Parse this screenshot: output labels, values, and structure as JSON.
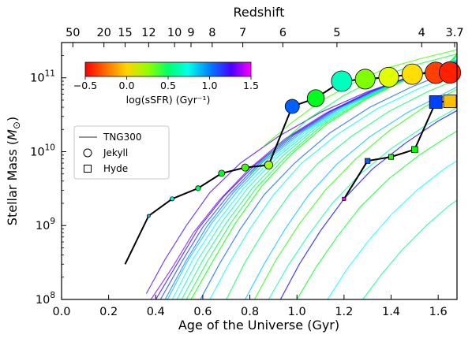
{
  "chart_data": {
    "type": "scatter",
    "xlabel": "Age of the Universe (Gyr)",
    "ylabel": "Stellar Mass (M⊙)",
    "top_axis_label": "Redshift",
    "xlim": [
      0.0,
      1.68
    ],
    "ylim": [
      100000000.0,
      300000000000.0
    ],
    "yscale": "log",
    "x_ticks": [
      "0.0",
      "0.2",
      "0.4",
      "0.6",
      "0.8",
      "1.0",
      "1.2",
      "1.4",
      "1.6"
    ],
    "y_ticks": [
      {
        "base": "10",
        "exp": "8",
        "value": 100000000.0
      },
      {
        "base": "10",
        "exp": "9",
        "value": 1000000000.0
      },
      {
        "base": "10",
        "exp": "10",
        "value": 10000000000.0
      },
      {
        "base": "10",
        "exp": "11",
        "value": 100000000000.0
      }
    ],
    "redshift_ticks": [
      {
        "label": "50",
        "age": 0.048
      },
      {
        "label": "20",
        "age": 0.18
      },
      {
        "label": "15",
        "age": 0.27
      },
      {
        "label": "12",
        "age": 0.37
      },
      {
        "label": "10",
        "age": 0.48
      },
      {
        "label": "9",
        "age": 0.55
      },
      {
        "label": "8",
        "age": 0.64
      },
      {
        "label": "7",
        "age": 0.77
      },
      {
        "label": "6",
        "age": 0.94
      },
      {
        "label": "5",
        "age": 1.17
      },
      {
        "label": "4",
        "age": 1.53
      },
      {
        "label": "3.7",
        "age": 1.67
      }
    ],
    "colorbar": {
      "label": "log(sSFR) (Gyr⁻¹)",
      "range": [
        -0.5,
        1.5
      ],
      "ticks": [
        "−0.5",
        "0.0",
        "0.5",
        "1.0",
        "1.5"
      ],
      "tick_values": [
        -0.5,
        0.0,
        0.5,
        1.0,
        1.5
      ],
      "colormap": "gist_rainbow_r"
    },
    "legend": {
      "placement": "center-left",
      "entries": [
        {
          "label": "TNG300",
          "marker": "line"
        },
        {
          "label": "Jekyll",
          "marker": "circle"
        },
        {
          "label": "Hyde",
          "marker": "square"
        }
      ]
    },
    "series": [
      {
        "name": "Jekyll",
        "marker": "circle",
        "x": [
          0.27,
          0.37,
          0.47,
          0.58,
          0.68,
          0.78,
          0.88,
          0.98,
          1.08,
          1.19,
          1.29,
          1.39,
          1.49,
          1.59,
          1.65
        ],
        "y": [
          300000000.0,
          1350000000.0,
          2300000000.0,
          3200000000.0,
          5100000000.0,
          6100000000.0,
          6600000000.0,
          41000000000.0,
          53000000000.0,
          90000000000.0,
          96000000000.0,
          102000000000.0,
          112000000000.0,
          117000000000.0,
          118000000000.0
        ],
        "log_ssfr": [
          null,
          0.8,
          0.65,
          0.45,
          0.35,
          0.2,
          0.05,
          0.95,
          0.35,
          0.6,
          0.1,
          -0.05,
          -0.15,
          -0.4,
          -0.45
        ],
        "size": [
          0,
          1,
          1.3,
          1.6,
          2.0,
          2.3,
          2.6,
          4.5,
          5.4,
          6.5,
          6.3,
          6.3,
          6.5,
          6.8,
          6.8
        ]
      },
      {
        "name": "Hyde",
        "marker": "square",
        "x": [
          1.2,
          1.3,
          1.4,
          1.5,
          1.59,
          1.65
        ],
        "y": [
          2300000000.0,
          7500000000.0,
          8500000000.0,
          10700000000.0,
          47000000000.0,
          48000000000.0
        ],
        "log_ssfr": [
          1.5,
          0.95,
          0.25,
          0.3,
          1.0,
          -0.2
        ],
        "size": [
          0.6,
          0.9,
          0.9,
          1.1,
          2.3,
          2.3
        ]
      }
    ],
    "tng300_tracks": [
      {
        "log_ssfr": 1.3,
        "points": [
          [
            0.38,
            100000000.0
          ],
          [
            0.47,
            270000000.0
          ],
          [
            0.56,
            800000000.0
          ],
          [
            0.67,
            2200000000.0
          ],
          [
            0.8,
            6000000000.0
          ],
          [
            0.95,
            15000000000.0
          ],
          [
            1.12,
            33000000000.0
          ],
          [
            1.3,
            63000000000.0
          ],
          [
            1.48,
            105000000000.0
          ],
          [
            1.68,
            155000000000.0
          ]
        ]
      },
      {
        "log_ssfr": 1.15,
        "points": [
          [
            0.4,
            100000000.0
          ],
          [
            0.49,
            300000000.0
          ],
          [
            0.58,
            900000000.0
          ],
          [
            0.69,
            2500000000.0
          ],
          [
            0.82,
            6500000000.0
          ],
          [
            0.97,
            16000000000.0
          ],
          [
            1.14,
            35000000000.0
          ],
          [
            1.32,
            66000000000.0
          ],
          [
            1.5,
            108000000000.0
          ],
          [
            1.68,
            160000000000.0
          ]
        ]
      },
      {
        "log_ssfr": 1.0,
        "points": [
          [
            0.42,
            100000000.0
          ],
          [
            0.51,
            320000000.0
          ],
          [
            0.6,
            950000000.0
          ],
          [
            0.71,
            2600000000.0
          ],
          [
            0.84,
            7000000000.0
          ],
          [
            0.99,
            17000000000.0
          ],
          [
            1.16,
            37000000000.0
          ],
          [
            1.34,
            70000000000.0
          ],
          [
            1.52,
            112000000000.0
          ],
          [
            1.68,
            165000000000.0
          ]
        ]
      },
      {
        "log_ssfr": 0.9,
        "points": [
          [
            0.44,
            100000000.0
          ],
          [
            0.53,
            340000000.0
          ],
          [
            0.62,
            1000000000.0
          ],
          [
            0.73,
            2800000000.0
          ],
          [
            0.86,
            7500000000.0
          ],
          [
            1.01,
            18000000000.0
          ],
          [
            1.18,
            39000000000.0
          ],
          [
            1.36,
            72000000000.0
          ],
          [
            1.54,
            115000000000.0
          ],
          [
            1.68,
            170000000000.0
          ]
        ]
      },
      {
        "log_ssfr": 0.8,
        "points": [
          [
            0.45,
            100000000.0
          ],
          [
            0.54,
            350000000.0
          ],
          [
            0.64,
            1100000000.0
          ],
          [
            0.75,
            3000000000.0
          ],
          [
            0.88,
            8000000000.0
          ],
          [
            1.03,
            19000000000.0
          ],
          [
            1.2,
            41000000000.0
          ],
          [
            1.38,
            76000000000.0
          ],
          [
            1.56,
            120000000000.0
          ],
          [
            1.68,
            175000000000.0
          ]
        ]
      },
      {
        "log_ssfr": 0.7,
        "points": [
          [
            0.47,
            100000000.0
          ],
          [
            0.56,
            360000000.0
          ],
          [
            0.66,
            1100000000.0
          ],
          [
            0.77,
            3100000000.0
          ],
          [
            0.9,
            8300000000.0
          ],
          [
            1.05,
            20000000000.0
          ],
          [
            1.22,
            43000000000.0
          ],
          [
            1.4,
            80000000000.0
          ],
          [
            1.58,
            125000000000.0
          ],
          [
            1.68,
            180000000000.0
          ]
        ]
      },
      {
        "log_ssfr": 0.6,
        "points": [
          [
            0.49,
            100000000.0
          ],
          [
            0.58,
            350000000.0
          ],
          [
            0.68,
            1100000000.0
          ],
          [
            0.79,
            3200000000.0
          ],
          [
            0.92,
            8600000000.0
          ],
          [
            1.07,
            21000000000.0
          ],
          [
            1.24,
            46000000000.0
          ],
          [
            1.42,
            85000000000.0
          ],
          [
            1.6,
            132000000000.0
          ],
          [
            1.68,
            190000000000.0
          ]
        ]
      },
      {
        "log_ssfr": 0.5,
        "points": [
          [
            0.51,
            100000000.0
          ],
          [
            0.6,
            340000000.0
          ],
          [
            0.7,
            1100000000.0
          ],
          [
            0.81,
            3200000000.0
          ],
          [
            0.94,
            8800000000.0
          ],
          [
            1.09,
            22000000000.0
          ],
          [
            1.26,
            48000000000.0
          ],
          [
            1.44,
            90000000000.0
          ],
          [
            1.62,
            140000000000.0
          ],
          [
            1.68,
            200000000000.0
          ]
        ]
      },
      {
        "log_ssfr": 0.4,
        "points": [
          [
            0.53,
            100000000.0
          ],
          [
            0.62,
            330000000.0
          ],
          [
            0.72,
            1100000000.0
          ],
          [
            0.83,
            3300000000.0
          ],
          [
            0.96,
            9000000000.0
          ],
          [
            1.11,
            23000000000.0
          ],
          [
            1.28,
            50000000000.0
          ],
          [
            1.46,
            95000000000.0
          ],
          [
            1.64,
            150000000000.0
          ],
          [
            1.68,
            210000000000.0
          ]
        ]
      },
      {
        "log_ssfr": 0.3,
        "points": [
          [
            0.55,
            100000000.0
          ],
          [
            0.64,
            320000000.0
          ],
          [
            0.74,
            1100000000.0
          ],
          [
            0.85,
            3400000000.0
          ],
          [
            0.98,
            9500000000.0
          ],
          [
            1.13,
            24000000000.0
          ],
          [
            1.3,
            53000000000.0
          ],
          [
            1.48,
            100000000000.0
          ],
          [
            1.66,
            160000000000.0
          ],
          [
            1.68,
            220000000000.0
          ]
        ]
      },
      {
        "log_ssfr": 1.2,
        "points": [
          [
            0.36,
            120000000.0
          ],
          [
            0.44,
            350000000.0
          ],
          [
            0.53,
            1000000000.0
          ],
          [
            0.63,
            2800000000.0
          ],
          [
            0.76,
            7000000000.0
          ],
          [
            0.92,
            16000000000.0
          ],
          [
            1.1,
            34000000000.0
          ],
          [
            1.3,
            65000000000.0
          ],
          [
            1.5,
            108000000000.0
          ],
          [
            1.68,
            150000000000.0
          ]
        ]
      },
      {
        "log_ssfr": 0.95,
        "points": [
          [
            0.59,
            100000000.0
          ],
          [
            0.67,
            300000000.0
          ],
          [
            0.76,
            900000000.0
          ],
          [
            0.86,
            2600000000.0
          ],
          [
            0.99,
            7000000000.0
          ],
          [
            1.14,
            18000000000.0
          ],
          [
            1.31,
            40000000000.0
          ],
          [
            1.49,
            76000000000.0
          ],
          [
            1.66,
            125000000000.0
          ],
          [
            1.68,
            130000000000.0
          ]
        ]
      },
      {
        "log_ssfr": 0.65,
        "points": [
          [
            0.63,
            100000000.0
          ],
          [
            0.71,
            300000000.0
          ],
          [
            0.8,
            900000000.0
          ],
          [
            0.9,
            2600000000.0
          ],
          [
            1.02,
            7000000000.0
          ],
          [
            1.17,
            17000000000.0
          ],
          [
            1.34,
            38000000000.0
          ],
          [
            1.52,
            72000000000.0
          ],
          [
            1.68,
            115000000000.0
          ]
        ]
      },
      {
        "log_ssfr": 0.45,
        "points": [
          [
            0.7,
            100000000.0
          ],
          [
            0.78,
            320000000.0
          ],
          [
            0.87,
            950000000.0
          ],
          [
            0.97,
            2700000000.0
          ],
          [
            1.09,
            7000000000.0
          ],
          [
            1.23,
            16000000000.0
          ],
          [
            1.39,
            35000000000.0
          ],
          [
            1.56,
            66000000000.0
          ],
          [
            1.68,
            95000000000.0
          ]
        ]
      },
      {
        "log_ssfr": 0.8,
        "points": [
          [
            0.78,
            100000000.0
          ],
          [
            0.86,
            300000000.0
          ],
          [
            0.95,
            900000000.0
          ],
          [
            1.05,
            2600000000.0
          ],
          [
            1.17,
            6800000000.0
          ],
          [
            1.31,
            16000000000.0
          ],
          [
            1.47,
            34000000000.0
          ],
          [
            1.62,
            60000000000.0
          ],
          [
            1.68,
            75000000000.0
          ]
        ]
      },
      {
        "log_ssfr": 0.55,
        "points": [
          [
            0.88,
            100000000.0
          ],
          [
            0.96,
            280000000.0
          ],
          [
            1.05,
            750000000.0
          ],
          [
            1.15,
            2000000000.0
          ],
          [
            1.27,
            5000000000.0
          ],
          [
            1.4,
            11000000000.0
          ],
          [
            1.54,
            22000000000.0
          ],
          [
            1.66,
            36000000000.0
          ],
          [
            1.68,
            40000000000.0
          ]
        ]
      },
      {
        "log_ssfr": 0.35,
        "points": [
          [
            1.0,
            100000000.0
          ],
          [
            1.08,
            270000000.0
          ],
          [
            1.17,
            700000000.0
          ],
          [
            1.27,
            1800000000.0
          ],
          [
            1.39,
            4300000000.0
          ],
          [
            1.52,
            9000000000.0
          ],
          [
            1.64,
            16000000000.0
          ],
          [
            1.68,
            19000000000.0
          ]
        ]
      },
      {
        "log_ssfr": 0.7,
        "points": [
          [
            1.13,
            100000000.0
          ],
          [
            1.21,
            250000000.0
          ],
          [
            1.3,
            600000000.0
          ],
          [
            1.4,
            1400000000.0
          ],
          [
            1.51,
            3000000000.0
          ],
          [
            1.63,
            6000000000.0
          ],
          [
            1.68,
            7500000000.0
          ]
        ]
      },
      {
        "log_ssfr": 0.5,
        "points": [
          [
            1.28,
            100000000.0
          ],
          [
            1.36,
            220000000.0
          ],
          [
            1.45,
            480000000.0
          ],
          [
            1.55,
            1000000000.0
          ],
          [
            1.65,
            1900000000.0
          ],
          [
            1.68,
            2200000000.0
          ]
        ]
      },
      {
        "log_ssfr": 0.25,
        "points": [
          [
            0.82,
            100000000.0
          ],
          [
            0.91,
            340000000.0
          ],
          [
            1.01,
            1050000000.0
          ],
          [
            1.12,
            3000000000.0
          ],
          [
            1.25,
            8000000000.0
          ],
          [
            1.39,
            19000000000.0
          ],
          [
            1.54,
            40000000000.0
          ],
          [
            1.68,
            70000000000.0
          ]
        ]
      },
      {
        "log_ssfr": 1.1,
        "points": [
          [
            0.93,
            100000000.0
          ],
          [
            1.01,
            300000000.0
          ],
          [
            1.1,
            850000000.0
          ],
          [
            1.2,
            2300000000.0
          ],
          [
            1.32,
            5800000000.0
          ],
          [
            1.46,
            13000000000.0
          ],
          [
            1.6,
            26000000000.0
          ],
          [
            1.68,
            36000000000.0
          ]
        ]
      },
      {
        "log_ssfr": 0.2,
        "points": [
          [
            0.86,
            12000000000.0
          ],
          [
            0.98,
            25000000000.0
          ],
          [
            1.1,
            48000000000.0
          ],
          [
            1.24,
            85000000000.0
          ],
          [
            1.38,
            135000000000.0
          ],
          [
            1.52,
            180000000000.0
          ],
          [
            1.68,
            240000000000.0
          ]
        ]
      },
      {
        "log_ssfr": 0.4,
        "points": [
          [
            0.8,
            5000000000.0
          ],
          [
            0.92,
            12000000000.0
          ],
          [
            1.05,
            28000000000.0
          ],
          [
            1.2,
            58000000000.0
          ],
          [
            1.36,
            105000000000.0
          ],
          [
            1.52,
            155000000000.0
          ],
          [
            1.68,
            210000000000.0
          ]
        ]
      }
    ]
  }
}
